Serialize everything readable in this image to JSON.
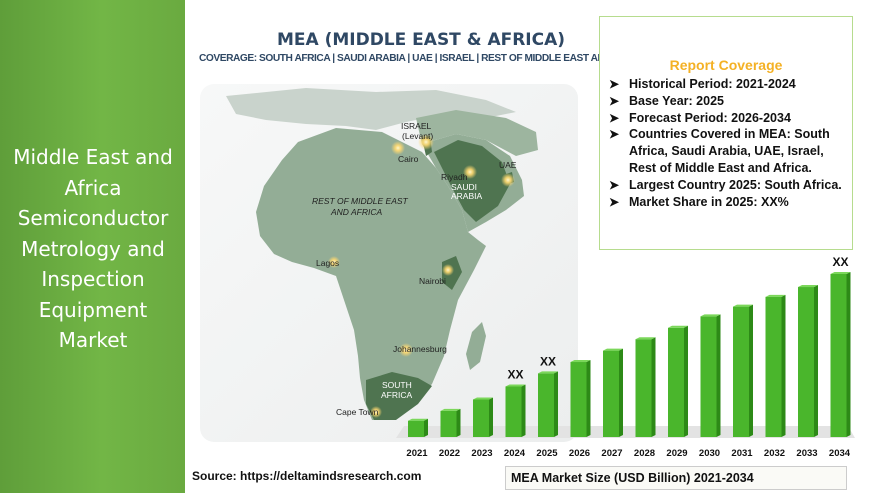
{
  "left_panel": {
    "title": "Middle East and Africa Semiconductor Metrology and Inspection Equipment Market"
  },
  "map": {
    "title": "MEA (MIDDLE EAST & AFRICA)",
    "coverage_label": "COVERAGE:",
    "coverage_regions": "SOUTH AFRICA | SAUDI ARABIA | UAE | ISRAEL | REST OF MIDDLE EAST AND AFRICA",
    "labels": {
      "israel": "ISRAEL",
      "levant": "(Levant)",
      "cairo": "Cairo",
      "uae": "UAE",
      "riyadh": "Riyadh",
      "saudi1": "SAUDI",
      "saudi2": "ARABIA",
      "rest1": "REST OF MIDDLE EAST",
      "rest2": "AND AFRICA",
      "lagos": "Lagos",
      "nairobi": "Nairobi",
      "johannesburg": "Johannesburg",
      "south1": "SOUTH",
      "south2": "AFRICA",
      "cape_town": "Cape Town"
    },
    "colors": {
      "land": "#93ad96",
      "highlight": "#4f7450",
      "sea": "#f2f4f4"
    }
  },
  "report_coverage": {
    "title": "Report Coverage",
    "items": [
      "Historical Period: 2021-2024",
      "Base Year: 2025",
      "Forecast Period: 2026-2034",
      "Countries Covered in MEA: South Africa, Saudi Arabia, UAE, Israel, Rest of Middle East and Africa.",
      "Largest Country 2025: South Africa.",
      "Market Share in 2025: XX%"
    ],
    "title_color": "#f4b125",
    "border_color": "#b6dc8e"
  },
  "chart_data": {
    "type": "bar",
    "title": "MEA Market Size (USD Billion) 2021-2034",
    "categories": [
      "2021",
      "2022",
      "2023",
      "2024",
      "2025",
      "2026",
      "2027",
      "2028",
      "2029",
      "2030",
      "2031",
      "2032",
      "2033",
      "2034"
    ],
    "values": [
      1.0,
      1.6,
      2.3,
      3.1,
      3.9,
      4.6,
      5.3,
      6.0,
      6.7,
      7.4,
      8.0,
      8.6,
      9.2,
      10.0
    ],
    "annotations": [
      {
        "category": "2024",
        "text": "XX"
      },
      {
        "category": "2025",
        "text": "XX"
      },
      {
        "category": "2034",
        "text": "XX"
      }
    ],
    "bar_color": "#4ab62c",
    "bar_dark": "#2d8a17",
    "floor_color": "#e3e3e3"
  },
  "footer": {
    "source": "Source: https://deltamindsresearch.com",
    "legend": "MEA Market Size (USD Billion) 2021-2034"
  },
  "colors": {
    "left_panel": "#6aaa40"
  }
}
